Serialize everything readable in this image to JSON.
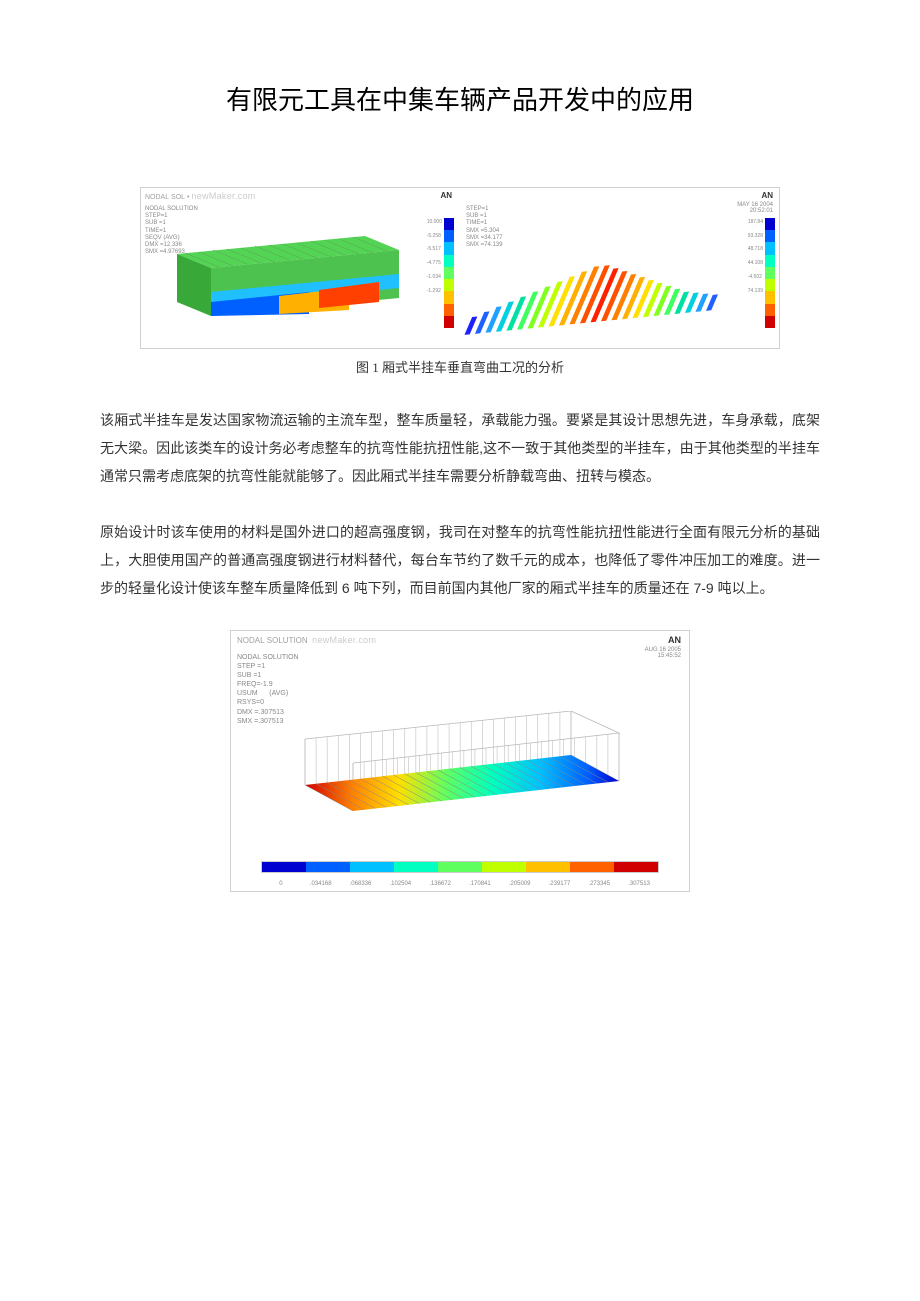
{
  "title": "有限元工具在中集车辆产品开发中的应用",
  "figure1": {
    "caption": "图 1 厢式半挂车垂直弯曲工况的分析",
    "watermark": "newMaker.com",
    "logo": "AN",
    "left_panel": {
      "stats": "NODAL SOLUTION\nSTEP=1\nSUB =1\nTIME=1\nSEQV (AVG)\nDMX =12.336\nSMX =4.97693",
      "colorbar_colors": [
        "#0000d0",
        "#0060ff",
        "#00c0ff",
        "#00ffc0",
        "#60ff60",
        "#c0ff00",
        "#ffc000",
        "#ff6000",
        "#d00000"
      ],
      "tick_labels": [
        "10.000",
        "-5.258",
        "-5.517",
        "-4.775",
        "-1.034",
        "-1.292"
      ]
    },
    "right_panel": {
      "stamp": "MAY 16 2004\n20:52:01",
      "stats": "STEP=1\nSUB =1\nTIME=1\nSMX =5.304\nSMX =34.177\nSMX =74.139",
      "colorbar_colors": [
        "#0000d0",
        "#0060ff",
        "#00c0ff",
        "#00ffc0",
        "#60ff60",
        "#c0ff00",
        "#ffc000",
        "#ff6000",
        "#d00000"
      ],
      "tick_labels": [
        "187.84",
        "93.328",
        "48.718",
        "44.108",
        "-4.502",
        "74.139"
      ],
      "rib_colors": [
        "#2020ff",
        "#2060ff",
        "#20a0ff",
        "#00d0e0",
        "#00e0a0",
        "#40ff60",
        "#80ff20",
        "#c0ff00",
        "#ffe000",
        "#ffb000",
        "#ff8000",
        "#ff5000",
        "#ff2000",
        "#ff5000",
        "#ff8000",
        "#ffb000",
        "#ffe000",
        "#c0ff00",
        "#80ff20",
        "#40ff60",
        "#00e0a0",
        "#00d0e0",
        "#20a0ff",
        "#2060ff"
      ],
      "rib_heights": [
        18,
        22,
        26,
        30,
        34,
        38,
        42,
        46,
        50,
        54,
        58,
        58,
        54,
        50,
        46,
        42,
        38,
        34,
        30,
        26,
        22,
        20,
        18,
        16
      ]
    }
  },
  "paragraph1": "该厢式半挂车是发达国家物流运输的主流车型，整车质量轻，承载能力强。要紧是其设计思想先进，车身承载，底架无大梁。因此该类车的设计务必考虑整车的抗弯性能抗扭性能,这不一致于其他类型的半挂车，由于其他类型的半挂车通常只需考虑底架的抗弯性能就能够了。因此厢式半挂车需要分析静载弯曲、扭转与模态。",
  "paragraph2": "原始设计时该车使用的材料是国外进口的超高强度钢，我司在对整车的抗弯性能抗扭性能进行全面有限元分析的基础上，大胆使用国产的普通高强度钢进行材料替代，每台车节约了数千元的成本，也降低了零件冲压加工的难度。进一步的轻量化设计使该车整车质量降低到 6 吨下列，而目前国内其他厂家的厢式半挂车的质量还在 7-9 吨以上。",
  "figure2": {
    "watermark": "newMaker.com",
    "logo": "AN",
    "stamp": "AUG 16 2005\n15:45:52",
    "stats": "NODAL SOLUTION\nSTEP =1\nSUB =1\nFREQ=-1.9\nUSUM      (AVG)\nRSYS=0\nDMX =.307513\nSMX =.307513",
    "hbar_colors": [
      "#0000d0",
      "#0060ff",
      "#00c0ff",
      "#00ffc0",
      "#60ff60",
      "#c0ff00",
      "#ffc000",
      "#ff6000",
      "#d00000"
    ],
    "tick_labels": [
      "0",
      ".034168",
      ".068336",
      ".102504",
      ".136672",
      ".170841",
      ".205009",
      ".239177",
      ".273345",
      ".307513"
    ]
  }
}
